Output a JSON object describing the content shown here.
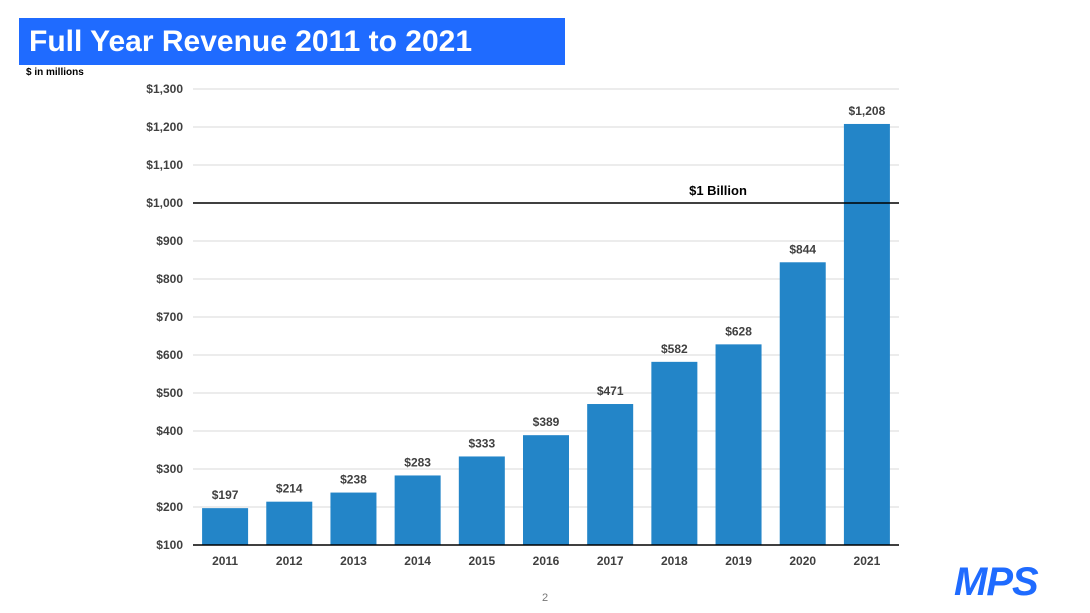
{
  "slide": {
    "title": "Full Year Revenue 2011 to 2021",
    "subtitle": "$ in millions",
    "page_number": "2",
    "logo_text": "MPS",
    "title_bg_color": "#1f6bff",
    "logo_color": "#1f6bff"
  },
  "chart_data": {
    "type": "bar",
    "title": "Full Year Revenue 2011 to 2021",
    "ylabel": "",
    "xlabel": "",
    "categories": [
      "2011",
      "2012",
      "2013",
      "2014",
      "2015",
      "2016",
      "2017",
      "2018",
      "2019",
      "2020",
      "2021"
    ],
    "values": [
      197,
      214,
      238,
      283,
      333,
      389,
      471,
      582,
      628,
      844,
      1208
    ],
    "value_labels": [
      "$197",
      "$214",
      "$238",
      "$283",
      "$333",
      "$389",
      "$471",
      "$582",
      "$628",
      "$844",
      "$1,208"
    ],
    "ylim": [
      100,
      1300
    ],
    "yticks": [
      100,
      200,
      300,
      400,
      500,
      600,
      700,
      800,
      900,
      1000,
      1100,
      1200,
      1300
    ],
    "ytick_labels": [
      "$100",
      "$200",
      "$300",
      "$400",
      "$500",
      "$600",
      "$700",
      "$800",
      "$900",
      "$1,000",
      "$1,100",
      "$1,200",
      "$1,300"
    ],
    "bar_color": "#2385c8",
    "grid": true,
    "reference_line": {
      "value": 1000,
      "label": "$1 Billion"
    }
  }
}
